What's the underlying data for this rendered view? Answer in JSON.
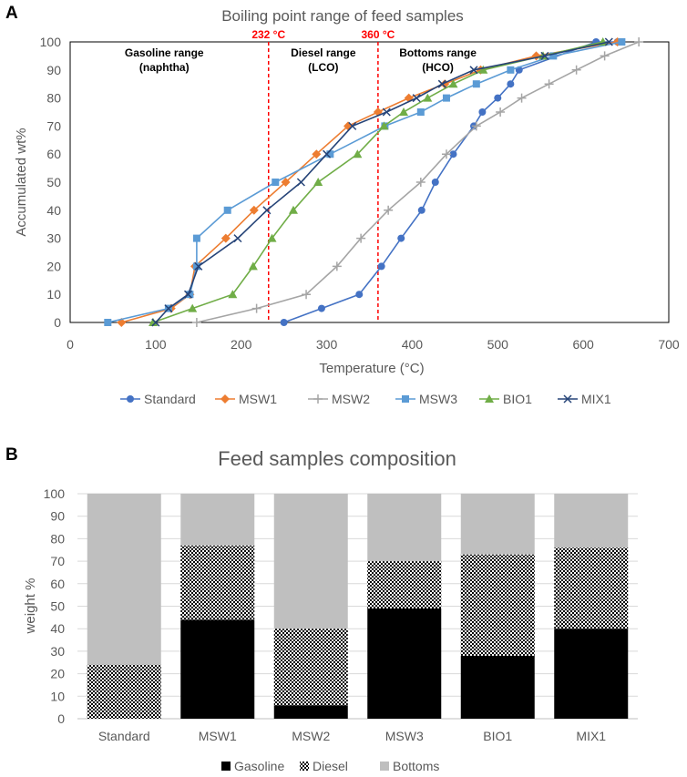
{
  "chart_data": [
    {
      "panel_label": "A",
      "type": "line",
      "title": "Boiling point range of feed samples",
      "xlabel": "Temperature (°C)",
      "ylabel": "Accumulated wt%",
      "xlim": [
        0,
        700
      ],
      "ylim": [
        0,
        100
      ],
      "xticks": [
        0,
        100,
        200,
        300,
        400,
        500,
        600,
        700
      ],
      "yticks": [
        0,
        10,
        20,
        30,
        40,
        50,
        60,
        70,
        80,
        90,
        100
      ],
      "grid": false,
      "legend_position": "bottom",
      "series": [
        {
          "name": "Standard",
          "marker": "circle",
          "color": "#4472c4",
          "x": [
            250,
            294,
            338,
            364,
            387,
            411,
            427,
            448,
            472,
            482,
            500,
            515,
            525,
            615,
            640
          ],
          "y": [
            0,
            5,
            10,
            20,
            30,
            40,
            50,
            60,
            70,
            75,
            80,
            85,
            90,
            100,
            100
          ]
        },
        {
          "name": "MSW1",
          "marker": "diamond",
          "color": "#ed7d31",
          "x": [
            60,
            118,
            140,
            146,
            182,
            215,
            252,
            288,
            325,
            360,
            396,
            438,
            480,
            545,
            640
          ],
          "y": [
            0,
            5,
            10,
            20,
            30,
            40,
            50,
            60,
            70,
            75,
            80,
            85,
            90,
            95,
            100
          ]
        },
        {
          "name": "MSW2",
          "marker": "plus",
          "color": "#a5a5a5",
          "x": [
            148,
            218,
            276,
            312,
            340,
            372,
            410,
            440,
            475,
            503,
            528,
            560,
            592,
            625,
            665
          ],
          "y": [
            0,
            5,
            10,
            20,
            30,
            40,
            50,
            60,
            70,
            75,
            80,
            85,
            90,
            95,
            100
          ]
        },
        {
          "name": "MSW3",
          "marker": "square",
          "color": "#5b9bd5",
          "x": [
            44,
            115,
            140,
            148,
            148,
            184,
            240,
            304,
            368,
            410,
            440,
            475,
            515,
            565,
            645
          ],
          "y": [
            0,
            5,
            10,
            20,
            30,
            40,
            50,
            60,
            70,
            75,
            80,
            85,
            90,
            95,
            100
          ]
        },
        {
          "name": "BIO1",
          "marker": "triangle",
          "color": "#70ad47",
          "x": [
            97,
            143,
            190,
            214,
            236,
            261,
            290,
            336,
            367,
            390,
            418,
            448,
            483,
            553,
            623
          ],
          "y": [
            0,
            5,
            10,
            20,
            30,
            40,
            50,
            60,
            70,
            75,
            80,
            85,
            90,
            95,
            100
          ]
        },
        {
          "name": "MIX1",
          "marker": "x",
          "color": "#264478",
          "x": [
            100,
            115,
            138,
            150,
            196,
            230,
            270,
            300,
            330,
            370,
            405,
            435,
            472,
            555,
            630
          ],
          "y": [
            0,
            5,
            10,
            20,
            30,
            40,
            50,
            60,
            70,
            75,
            80,
            85,
            90,
            95,
            100
          ]
        }
      ],
      "vertical_lines": [
        {
          "x": 232,
          "label": "232 °C",
          "color": "#ff0000"
        },
        {
          "x": 360,
          "label": "360 °C",
          "color": "#ff0000"
        }
      ],
      "regions": [
        {
          "line1": "Gasoline range",
          "line2": "(naphtha)",
          "x": 110
        },
        {
          "line1": "Diesel range",
          "line2": "(LCO)",
          "x": 296
        },
        {
          "line1": "Bottoms range",
          "line2": "(HCO)",
          "x": 430
        }
      ]
    },
    {
      "panel_label": "B",
      "type": "bar",
      "stacked": true,
      "title": "Feed samples composition",
      "xlabel": "",
      "ylabel": "weight %",
      "ylim": [
        0,
        100
      ],
      "yticks": [
        0,
        10,
        20,
        30,
        40,
        50,
        60,
        70,
        80,
        90,
        100
      ],
      "categories": [
        "Standard",
        "MSW1",
        "MSW2",
        "MSW3",
        "BIO1",
        "MIX1"
      ],
      "legend_position": "bottom",
      "series": [
        {
          "name": "Gasoline",
          "pattern": "solid-black",
          "values": [
            0,
            44,
            6,
            49,
            28,
            40
          ]
        },
        {
          "name": "Diesel",
          "pattern": "dotted",
          "values": [
            24,
            33,
            34,
            21,
            45,
            36
          ]
        },
        {
          "name": "Bottoms",
          "pattern": "solid-gray",
          "values": [
            76,
            23,
            60,
            30,
            27,
            24
          ]
        }
      ]
    }
  ]
}
